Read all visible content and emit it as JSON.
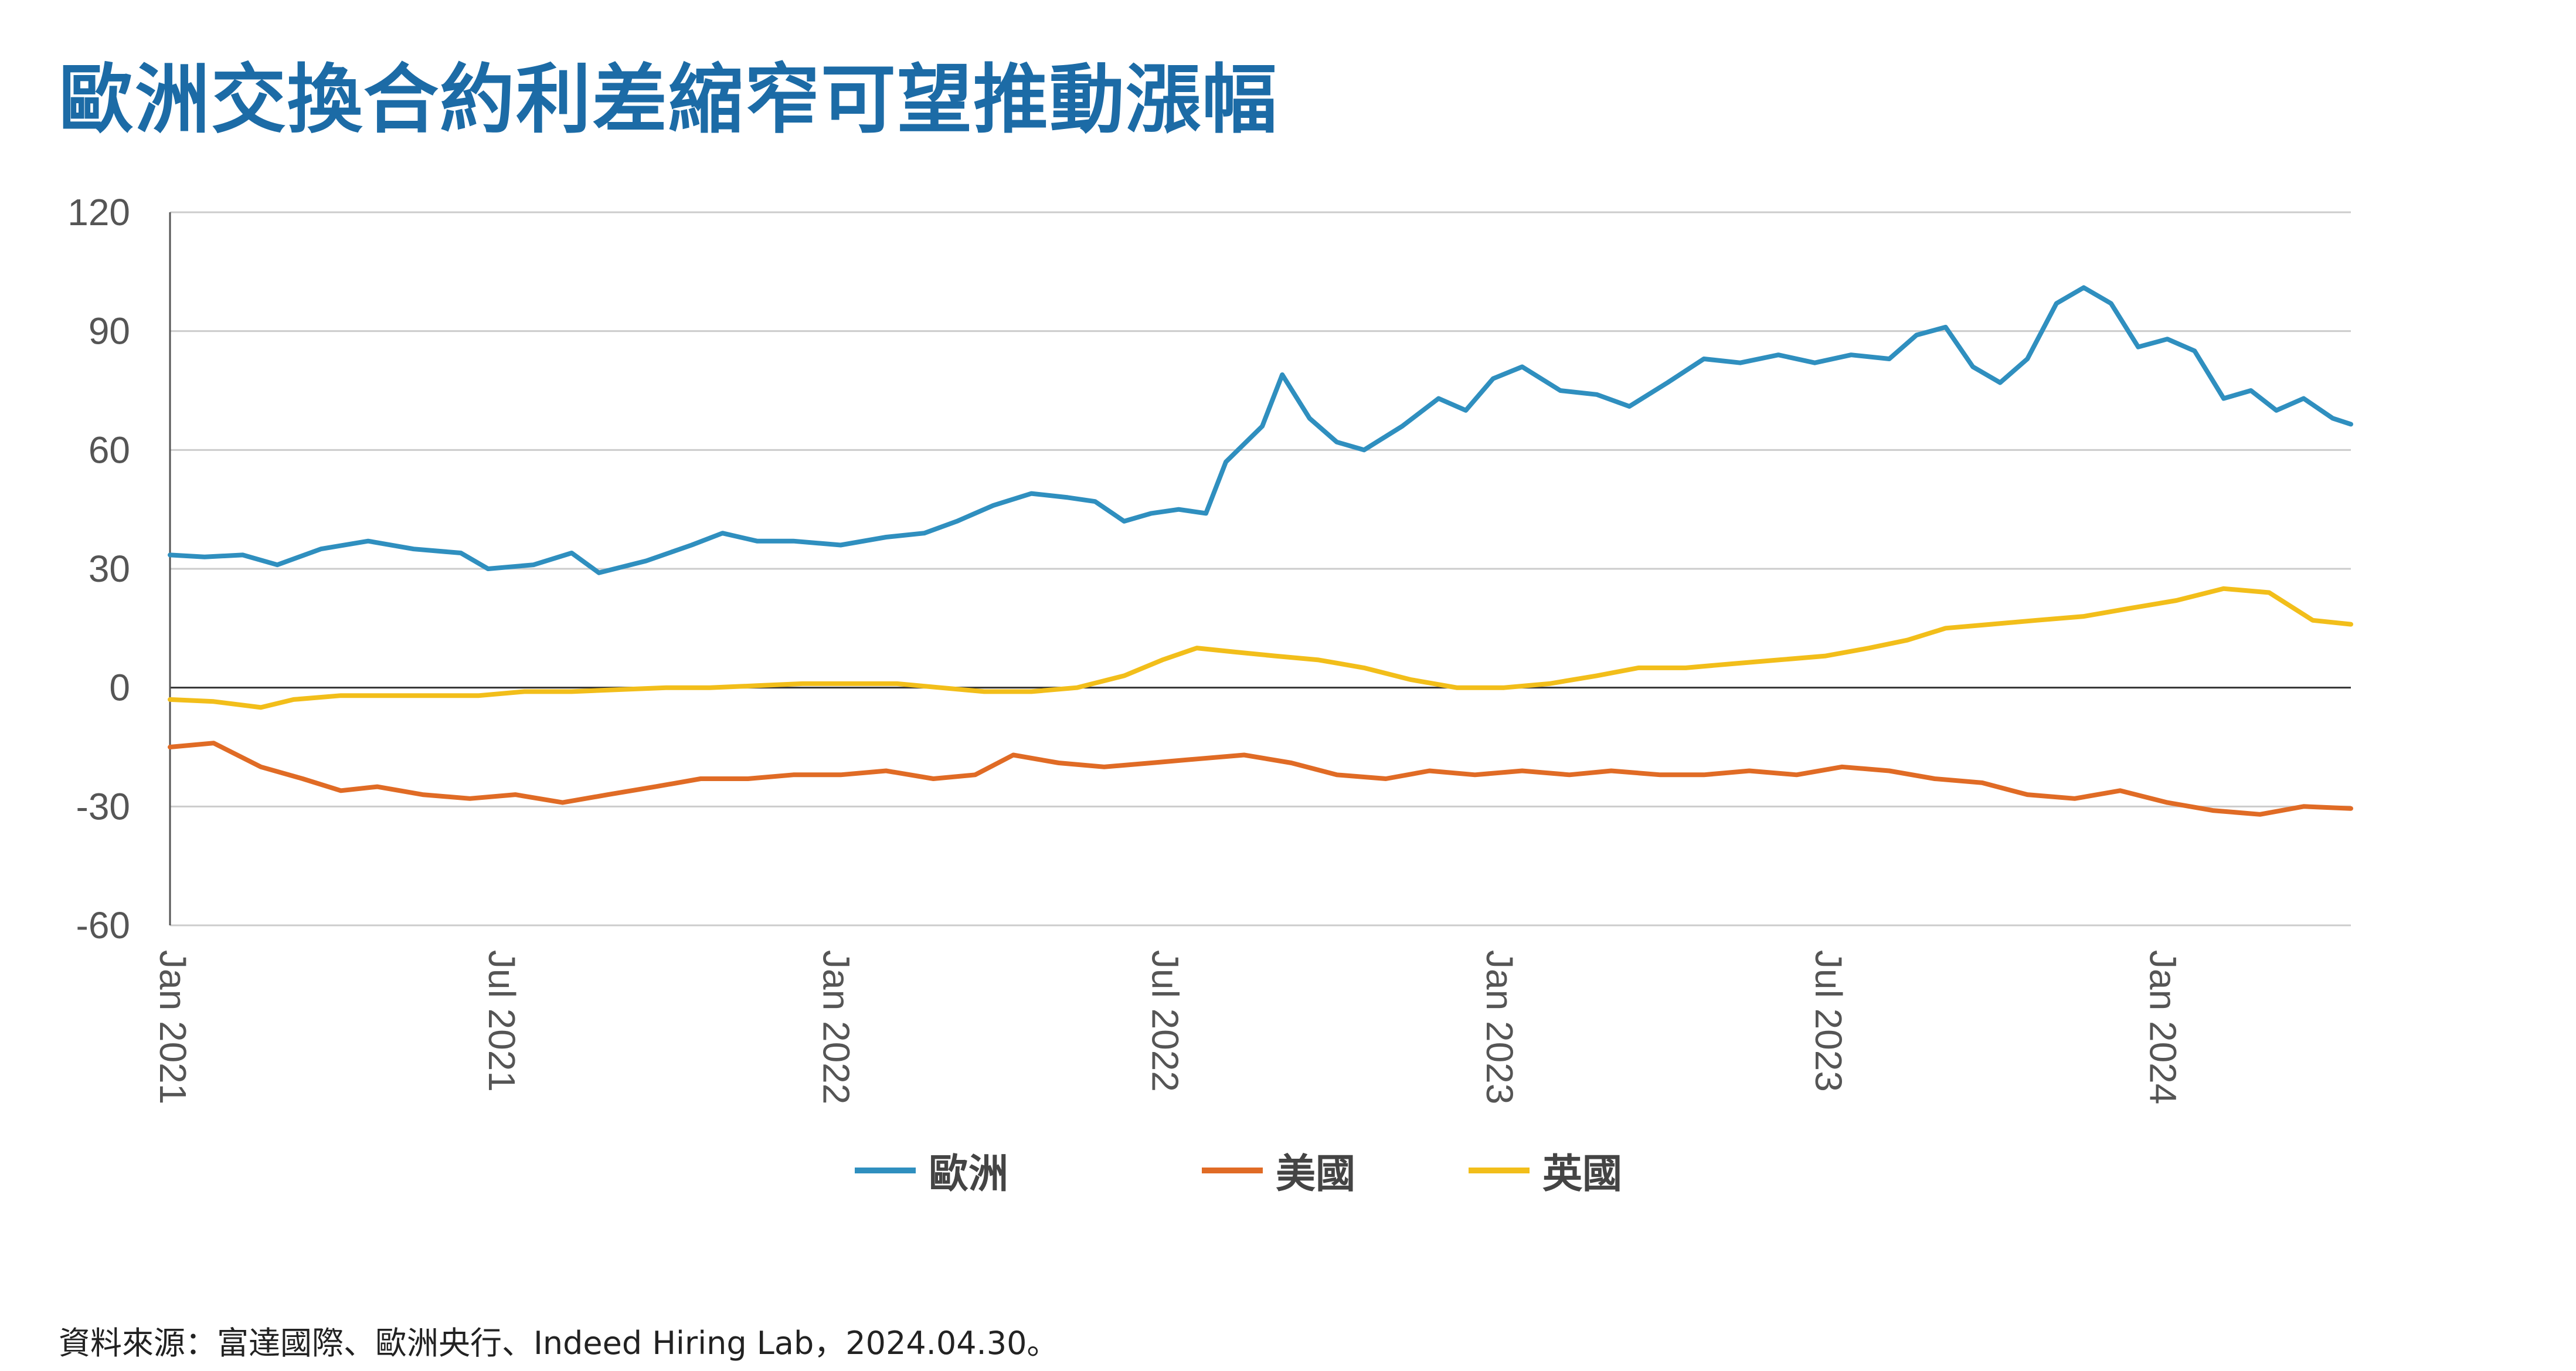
{
  "title": "歐洲交換合約利差縮窄可望推動漲幅",
  "source": "資料來源：富達國際、歐洲央行、Indeed Hiring Lab，2024.04.30。",
  "chart_data": {
    "type": "line",
    "title": "歐洲交換合約利差縮窄可望推動漲幅",
    "xlabel": "",
    "ylabel": "",
    "ylim": [
      -60,
      120
    ],
    "yticks": [
      120,
      90,
      60,
      30,
      0,
      -30,
      -60
    ],
    "x_start": "2021-01-01",
    "x_end": "2024-04-15",
    "xtick_labels": [
      "Jan 2021",
      "Jul 2021",
      "Jan 2022",
      "Jul 2022",
      "Jan 2023",
      "Jul 2023",
      "Jan 2024"
    ],
    "grid": true,
    "legend_position": "bottom",
    "series": [
      {
        "name": "歐洲",
        "color": "#2f8fbf",
        "points": [
          [
            "2021-01-01",
            33.5
          ],
          [
            "2021-01-20",
            33
          ],
          [
            "2021-02-10",
            33.5
          ],
          [
            "2021-03-01",
            31
          ],
          [
            "2021-03-25",
            35
          ],
          [
            "2021-04-20",
            37
          ],
          [
            "2021-05-15",
            35
          ],
          [
            "2021-06-10",
            34
          ],
          [
            "2021-06-25",
            30
          ],
          [
            "2021-07-20",
            31
          ],
          [
            "2021-08-10",
            34
          ],
          [
            "2021-08-25",
            29
          ],
          [
            "2021-09-20",
            32
          ],
          [
            "2021-10-15",
            36
          ],
          [
            "2021-11-01",
            39
          ],
          [
            "2021-11-20",
            37
          ],
          [
            "2021-12-10",
            37
          ],
          [
            "2022-01-05",
            36
          ],
          [
            "2022-01-30",
            38
          ],
          [
            "2022-02-20",
            39
          ],
          [
            "2022-03-10",
            42
          ],
          [
            "2022-03-30",
            46
          ],
          [
            "2022-04-20",
            49
          ],
          [
            "2022-05-10",
            48
          ],
          [
            "2022-05-25",
            47
          ],
          [
            "2022-06-10",
            42
          ],
          [
            "2022-06-25",
            44
          ],
          [
            "2022-07-10",
            45
          ],
          [
            "2022-07-25",
            44
          ],
          [
            "2022-08-05",
            57
          ],
          [
            "2022-08-25",
            66
          ],
          [
            "2022-09-05",
            79
          ],
          [
            "2022-09-20",
            68
          ],
          [
            "2022-10-05",
            62
          ],
          [
            "2022-10-20",
            60
          ],
          [
            "2022-11-10",
            66
          ],
          [
            "2022-11-30",
            73
          ],
          [
            "2022-12-15",
            70
          ],
          [
            "2022-12-30",
            78
          ],
          [
            "2023-01-15",
            81
          ],
          [
            "2023-02-05",
            75
          ],
          [
            "2023-02-25",
            74
          ],
          [
            "2023-03-15",
            71
          ],
          [
            "2023-04-05",
            77
          ],
          [
            "2023-04-25",
            83
          ],
          [
            "2023-05-15",
            82
          ],
          [
            "2023-06-05",
            84
          ],
          [
            "2023-06-25",
            82
          ],
          [
            "2023-07-15",
            84
          ],
          [
            "2023-08-05",
            83
          ],
          [
            "2023-08-20",
            89
          ],
          [
            "2023-09-05",
            91
          ],
          [
            "2023-09-20",
            81
          ],
          [
            "2023-10-05",
            77
          ],
          [
            "2023-10-20",
            83
          ],
          [
            "2023-11-05",
            97
          ],
          [
            "2023-11-20",
            101
          ],
          [
            "2023-12-05",
            97
          ],
          [
            "2023-12-20",
            86
          ],
          [
            "2024-01-05",
            88
          ],
          [
            "2024-01-20",
            85
          ],
          [
            "2024-02-05",
            73
          ],
          [
            "2024-02-20",
            75
          ],
          [
            "2024-03-05",
            70
          ],
          [
            "2024-03-20",
            73
          ],
          [
            "2024-04-05",
            68
          ],
          [
            "2024-04-15",
            66.5
          ]
        ]
      },
      {
        "name": "美國",
        "color": "#e06b25",
        "points": [
          [
            "2021-01-01",
            -15
          ],
          [
            "2021-01-25",
            -14
          ],
          [
            "2021-02-20",
            -20
          ],
          [
            "2021-03-15",
            -23
          ],
          [
            "2021-04-05",
            -26
          ],
          [
            "2021-04-25",
            -25
          ],
          [
            "2021-05-20",
            -27
          ],
          [
            "2021-06-15",
            -28
          ],
          [
            "2021-07-10",
            -27
          ],
          [
            "2021-08-05",
            -29
          ],
          [
            "2021-08-30",
            -27
          ],
          [
            "2021-09-25",
            -25
          ],
          [
            "2021-10-20",
            -23
          ],
          [
            "2021-11-15",
            -23
          ],
          [
            "2021-12-10",
            -22
          ],
          [
            "2022-01-05",
            -22
          ],
          [
            "2022-01-30",
            -21
          ],
          [
            "2022-02-25",
            -23
          ],
          [
            "2022-03-20",
            -22
          ],
          [
            "2022-04-10",
            -17
          ],
          [
            "2022-05-05",
            -19
          ],
          [
            "2022-05-30",
            -20
          ],
          [
            "2022-06-25",
            -19
          ],
          [
            "2022-07-20",
            -18
          ],
          [
            "2022-08-15",
            -17
          ],
          [
            "2022-09-10",
            -19
          ],
          [
            "2022-10-05",
            -22
          ],
          [
            "2022-11-01",
            -23
          ],
          [
            "2022-11-25",
            -21
          ],
          [
            "2022-12-20",
            -22
          ],
          [
            "2023-01-15",
            -21
          ],
          [
            "2023-02-10",
            -22
          ],
          [
            "2023-03-05",
            -21
          ],
          [
            "2023-04-01",
            -22
          ],
          [
            "2023-04-25",
            -22
          ],
          [
            "2023-05-20",
            -21
          ],
          [
            "2023-06-15",
            -22
          ],
          [
            "2023-07-10",
            -20
          ],
          [
            "2023-08-05",
            -21
          ],
          [
            "2023-08-30",
            -23
          ],
          [
            "2023-09-25",
            -24
          ],
          [
            "2023-10-20",
            -27
          ],
          [
            "2023-11-15",
            -28
          ],
          [
            "2023-12-10",
            -26
          ],
          [
            "2024-01-05",
            -29
          ],
          [
            "2024-01-30",
            -31
          ],
          [
            "2024-02-25",
            -32
          ],
          [
            "2024-03-20",
            -30
          ],
          [
            "2024-04-15",
            -30.5
          ]
        ]
      },
      {
        "name": "英國",
        "color": "#f2be1a",
        "points": [
          [
            "2021-01-01",
            -3
          ],
          [
            "2021-01-25",
            -3.5
          ],
          [
            "2021-02-20",
            -5
          ],
          [
            "2021-03-10",
            -3
          ],
          [
            "2021-04-05",
            -2
          ],
          [
            "2021-04-30",
            -2
          ],
          [
            "2021-05-25",
            -2
          ],
          [
            "2021-06-20",
            -2
          ],
          [
            "2021-07-15",
            -1
          ],
          [
            "2021-08-10",
            -1
          ],
          [
            "2021-09-05",
            -0.5
          ],
          [
            "2021-10-01",
            0
          ],
          [
            "2021-10-25",
            0
          ],
          [
            "2021-11-20",
            0.5
          ],
          [
            "2021-12-15",
            1
          ],
          [
            "2022-01-10",
            1
          ],
          [
            "2022-02-05",
            1
          ],
          [
            "2022-03-01",
            0
          ],
          [
            "2022-03-25",
            -1
          ],
          [
            "2022-04-20",
            -1
          ],
          [
            "2022-05-15",
            0
          ],
          [
            "2022-06-10",
            3
          ],
          [
            "2022-07-01",
            7
          ],
          [
            "2022-07-20",
            10
          ],
          [
            "2022-08-10",
            9
          ],
          [
            "2022-09-01",
            8
          ],
          [
            "2022-09-25",
            7
          ],
          [
            "2022-10-20",
            5
          ],
          [
            "2022-11-15",
            2
          ],
          [
            "2022-12-10",
            0
          ],
          [
            "2023-01-05",
            0
          ],
          [
            "2023-01-30",
            1
          ],
          [
            "2023-02-25",
            3
          ],
          [
            "2023-03-20",
            5
          ],
          [
            "2023-04-15",
            5
          ],
          [
            "2023-05-10",
            6
          ],
          [
            "2023-06-05",
            7
          ],
          [
            "2023-07-01",
            8
          ],
          [
            "2023-07-25",
            10
          ],
          [
            "2023-08-15",
            12
          ],
          [
            "2023-09-05",
            15
          ],
          [
            "2023-09-30",
            16
          ],
          [
            "2023-10-25",
            17
          ],
          [
            "2023-11-20",
            18
          ],
          [
            "2023-12-15",
            20
          ],
          [
            "2024-01-10",
            22
          ],
          [
            "2024-02-05",
            25
          ],
          [
            "2024-03-01",
            24
          ],
          [
            "2024-03-25",
            17
          ],
          [
            "2024-04-15",
            16
          ]
        ]
      }
    ]
  }
}
